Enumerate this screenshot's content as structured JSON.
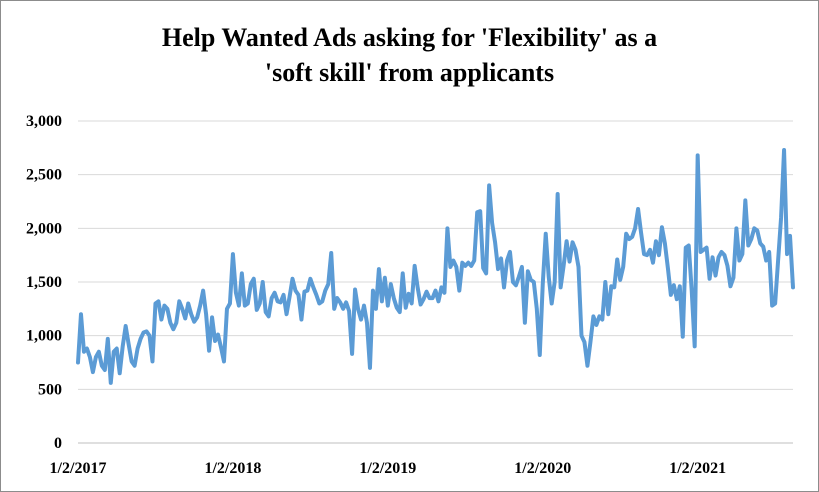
{
  "chart_data": {
    "type": "line",
    "title": [
      "Help Wanted Ads asking for 'Flexibility' as a",
      "'soft skill' from applicants"
    ],
    "xlabel": "",
    "ylabel": "",
    "ylim": [
      0,
      3000
    ],
    "y_ticks": [
      0,
      500,
      1000,
      1500,
      2000,
      2500,
      3000
    ],
    "y_tick_labels": [
      "0",
      "500",
      "1,000",
      "1,500",
      "2,000",
      "2,500",
      "3,000"
    ],
    "x_tick_labels": [
      "1/2/2017",
      "1/2/2018",
      "1/2/2019",
      "1/2/2020",
      "1/2/2021"
    ],
    "x_tick_positions": [
      0,
      52,
      104,
      156,
      208
    ],
    "grid": true,
    "line_color": "#5b9bd5",
    "series": [
      {
        "values": [
          750,
          1200,
          850,
          880,
          800,
          660,
          800,
          850,
          720,
          680,
          970,
          560,
          850,
          880,
          650,
          900,
          1090,
          920,
          760,
          720,
          880,
          970,
          1030,
          1040,
          1000,
          760,
          1300,
          1320,
          1150,
          1280,
          1250,
          1120,
          1060,
          1120,
          1320,
          1250,
          1160,
          1300,
          1200,
          1130,
          1170,
          1280,
          1420,
          1200,
          860,
          1170,
          950,
          1010,
          890,
          760,
          1250,
          1300,
          1760,
          1400,
          1280,
          1580,
          1280,
          1300,
          1480,
          1530,
          1240,
          1300,
          1500,
          1220,
          1180,
          1350,
          1400,
          1320,
          1310,
          1380,
          1200,
          1360,
          1530,
          1420,
          1380,
          1150,
          1410,
          1420,
          1530,
          1450,
          1380,
          1300,
          1320,
          1420,
          1480,
          1770,
          1250,
          1350,
          1310,
          1250,
          1310,
          1230,
          830,
          1430,
          1250,
          1150,
          1280,
          1120,
          700,
          1420,
          1250,
          1620,
          1320,
          1540,
          1280,
          1480,
          1350,
          1260,
          1220,
          1580,
          1260,
          1390,
          1300,
          1650,
          1450,
          1290,
          1340,
          1410,
          1350,
          1350,
          1420,
          1320,
          1450,
          1400,
          2000,
          1640,
          1700,
          1640,
          1420,
          1680,
          1650,
          1680,
          1650,
          1700,
          2150,
          2160,
          1630,
          1580,
          2400,
          2050,
          1870,
          1620,
          1720,
          1450,
          1700,
          1780,
          1500,
          1470,
          1550,
          1640,
          1120,
          1600,
          1520,
          1500,
          1250,
          820,
          1480,
          1950,
          1550,
          1300,
          1500,
          2320,
          1450,
          1650,
          1880,
          1690,
          1870,
          1800,
          1640,
          1000,
          940,
          720,
          940,
          1180,
          1100,
          1180,
          1150,
          1500,
          1200,
          1460,
          1450,
          1710,
          1520,
          1640,
          1950,
          1900,
          1920,
          2000,
          2180,
          1960,
          1760,
          1750,
          1800,
          1680,
          1880,
          1750,
          2010,
          1860,
          1630,
          1380,
          1470,
          1340,
          1460,
          990,
          1820,
          1840,
          1420,
          900,
          2680,
          1780,
          1800,
          1820,
          1530,
          1730,
          1560,
          1730,
          1780,
          1750,
          1650,
          1460,
          1540,
          2000,
          1700,
          1760,
          2260,
          1840,
          1900,
          2000,
          1980,
          1860,
          1830,
          1700,
          1780,
          1280,
          1300,
          1700,
          2100,
          2730,
          1760,
          1930,
          1450
        ]
      }
    ]
  }
}
